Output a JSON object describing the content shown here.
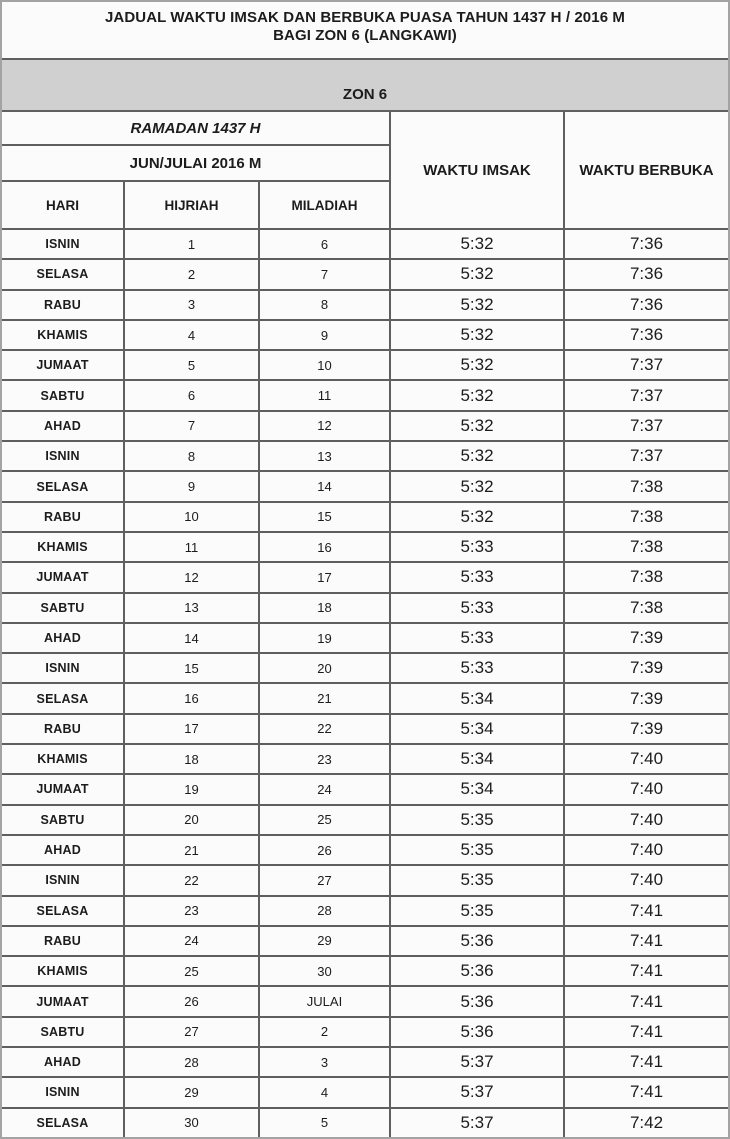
{
  "title": {
    "line1": "JADUAL WAKTU IMSAK DAN BERBUKA PUASA TAHUN 1437 H / 2016 M",
    "line2": "BAGI ZON 6 (LANGKAWI)"
  },
  "zone_banner": "ZON 6",
  "header": {
    "ramadan": "RAMADAN 1437 H",
    "gregorian": "JUN/JULAI 2016 M",
    "col_hari": "HARI",
    "col_hijriah": "HIJRIAH",
    "col_miladiah": "MILADIAH",
    "col_imsak": "WAKTU IMSAK",
    "col_berbuka": "WAKTU BERBUKA"
  },
  "colors": {
    "banner_bg": "#d0d0d0",
    "grid_line": "#5f5f5f",
    "frame_border": "#a3a3a3",
    "page_bg": "#fbfbfb",
    "text": "#1c1c1c"
  },
  "rows": [
    {
      "hari": "ISNIN",
      "hijriah": "1",
      "miladiah": "6",
      "imsak": "5:32",
      "berbuka": "7:36"
    },
    {
      "hari": "SELASA",
      "hijriah": "2",
      "miladiah": "7",
      "imsak": "5:32",
      "berbuka": "7:36"
    },
    {
      "hari": "RABU",
      "hijriah": "3",
      "miladiah": "8",
      "imsak": "5:32",
      "berbuka": "7:36"
    },
    {
      "hari": "KHAMIS",
      "hijriah": "4",
      "miladiah": "9",
      "imsak": "5:32",
      "berbuka": "7:36"
    },
    {
      "hari": "JUMAAT",
      "hijriah": "5",
      "miladiah": "10",
      "imsak": "5:32",
      "berbuka": "7:37"
    },
    {
      "hari": "SABTU",
      "hijriah": "6",
      "miladiah": "11",
      "imsak": "5:32",
      "berbuka": "7:37"
    },
    {
      "hari": "AHAD",
      "hijriah": "7",
      "miladiah": "12",
      "imsak": "5:32",
      "berbuka": "7:37"
    },
    {
      "hari": "ISNIN",
      "hijriah": "8",
      "miladiah": "13",
      "imsak": "5:32",
      "berbuka": "7:37"
    },
    {
      "hari": "SELASA",
      "hijriah": "9",
      "miladiah": "14",
      "imsak": "5:32",
      "berbuka": "7:38"
    },
    {
      "hari": "RABU",
      "hijriah": "10",
      "miladiah": "15",
      "imsak": "5:32",
      "berbuka": "7:38"
    },
    {
      "hari": "KHAMIS",
      "hijriah": "11",
      "miladiah": "16",
      "imsak": "5:33",
      "berbuka": "7:38"
    },
    {
      "hari": "JUMAAT",
      "hijriah": "12",
      "miladiah": "17",
      "imsak": "5:33",
      "berbuka": "7:38"
    },
    {
      "hari": "SABTU",
      "hijriah": "13",
      "miladiah": "18",
      "imsak": "5:33",
      "berbuka": "7:38"
    },
    {
      "hari": "AHAD",
      "hijriah": "14",
      "miladiah": "19",
      "imsak": "5:33",
      "berbuka": "7:39"
    },
    {
      "hari": "ISNIN",
      "hijriah": "15",
      "miladiah": "20",
      "imsak": "5:33",
      "berbuka": "7:39"
    },
    {
      "hari": "SELASA",
      "hijriah": "16",
      "miladiah": "21",
      "imsak": "5:34",
      "berbuka": "7:39"
    },
    {
      "hari": "RABU",
      "hijriah": "17",
      "miladiah": "22",
      "imsak": "5:34",
      "berbuka": "7:39"
    },
    {
      "hari": "KHAMIS",
      "hijriah": "18",
      "miladiah": "23",
      "imsak": "5:34",
      "berbuka": "7:40"
    },
    {
      "hari": "JUMAAT",
      "hijriah": "19",
      "miladiah": "24",
      "imsak": "5:34",
      "berbuka": "7:40"
    },
    {
      "hari": "SABTU",
      "hijriah": "20",
      "miladiah": "25",
      "imsak": "5:35",
      "berbuka": "7:40"
    },
    {
      "hari": "AHAD",
      "hijriah": "21",
      "miladiah": "26",
      "imsak": "5:35",
      "berbuka": "7:40"
    },
    {
      "hari": "ISNIN",
      "hijriah": "22",
      "miladiah": "27",
      "imsak": "5:35",
      "berbuka": "7:40"
    },
    {
      "hari": "SELASA",
      "hijriah": "23",
      "miladiah": "28",
      "imsak": "5:35",
      "berbuka": "7:41"
    },
    {
      "hari": "RABU",
      "hijriah": "24",
      "miladiah": "29",
      "imsak": "5:36",
      "berbuka": "7:41"
    },
    {
      "hari": "KHAMIS",
      "hijriah": "25",
      "miladiah": "30",
      "imsak": "5:36",
      "berbuka": "7:41"
    },
    {
      "hari": "JUMAAT",
      "hijriah": "26",
      "miladiah": "JULAI",
      "imsak": "5:36",
      "berbuka": "7:41"
    },
    {
      "hari": "SABTU",
      "hijriah": "27",
      "miladiah": "2",
      "imsak": "5:36",
      "berbuka": "7:41"
    },
    {
      "hari": "AHAD",
      "hijriah": "28",
      "miladiah": "3",
      "imsak": "5:37",
      "berbuka": "7:41"
    },
    {
      "hari": "ISNIN",
      "hijriah": "29",
      "miladiah": "4",
      "imsak": "5:37",
      "berbuka": "7:41"
    },
    {
      "hari": "SELASA",
      "hijriah": "30",
      "miladiah": "5",
      "imsak": "5:37",
      "berbuka": "7:42"
    }
  ]
}
